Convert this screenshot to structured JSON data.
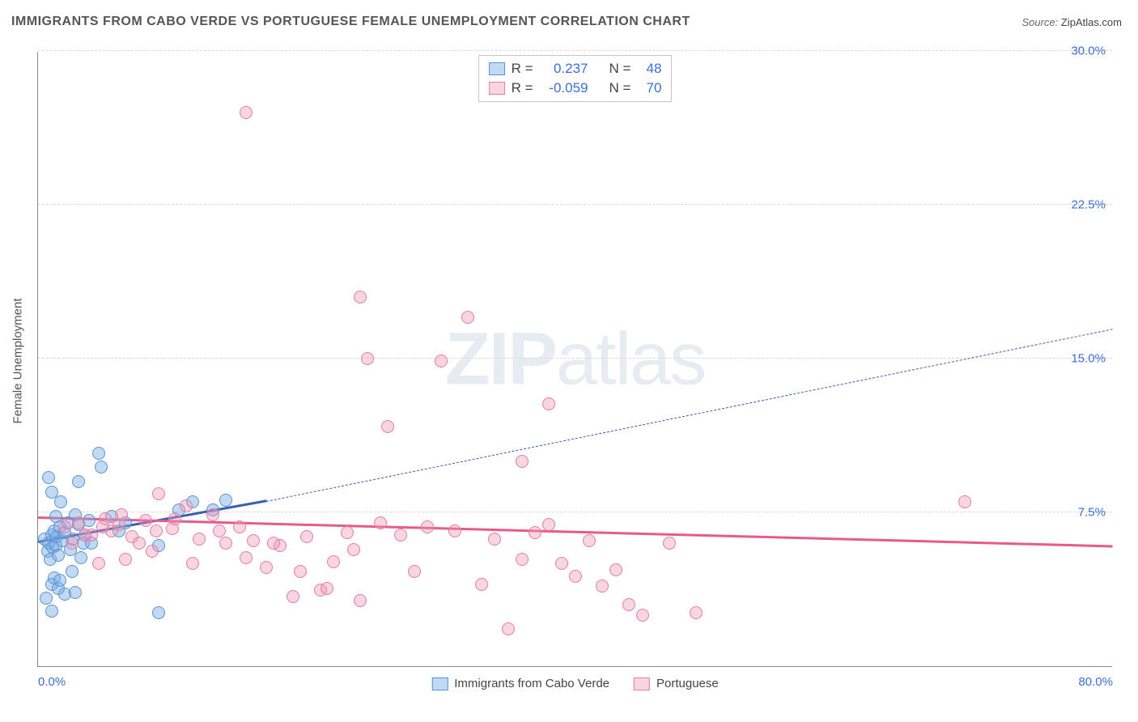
{
  "title": "IMMIGRANTS FROM CABO VERDE VS PORTUGUESE FEMALE UNEMPLOYMENT CORRELATION CHART",
  "source_prefix": "Source: ",
  "source_name": "ZipAtlas.com",
  "watermark": {
    "bold": "ZIP",
    "light": "atlas"
  },
  "y_axis_title": "Female Unemployment",
  "chart": {
    "type": "scatter",
    "xlim": [
      0,
      80
    ],
    "ylim": [
      0,
      30
    ],
    "x_ticks": [
      {
        "val": 0,
        "label": "0.0%"
      },
      {
        "val": 80,
        "label": "80.0%"
      }
    ],
    "y_ticks": [
      {
        "val": 7.5,
        "label": "7.5%"
      },
      {
        "val": 15.0,
        "label": "15.0%"
      },
      {
        "val": 22.5,
        "label": "22.5%"
      },
      {
        "val": 30.0,
        "label": "30.0%"
      }
    ],
    "y_tick_label_color": "#3b6fd6",
    "x_tick_label_color": "#3b6fd6",
    "grid_color": "#d8d8d8",
    "axis_color": "#888888",
    "background_color": "#ffffff",
    "marker_radius": 8,
    "marker_stroke_width": 1.5,
    "axis_title_fontsize": 15,
    "tick_label_fontsize": 15,
    "series": [
      {
        "id": "cabo_verde",
        "label": "Immigrants from Cabo Verde",
        "fill": "rgba(120,170,230,0.45)",
        "stroke": "#5a93d4",
        "R_label": "R =",
        "R": "0.237",
        "N_label": "N =",
        "N": "48",
        "trend": {
          "x1": 0,
          "y1": 6.0,
          "x2": 17,
          "y2": 8.0,
          "dash_x2": 80,
          "dash_y2": 16.4,
          "color": "#3b5fb0",
          "solid_width": 3,
          "dash_width": 1
        },
        "points": [
          [
            0.5,
            6.2
          ],
          [
            0.7,
            5.6
          ],
          [
            0.8,
            6.0
          ],
          [
            0.9,
            5.2
          ],
          [
            1.0,
            6.4
          ],
          [
            1.1,
            5.8
          ],
          [
            1.2,
            6.6
          ],
          [
            1.3,
            5.9
          ],
          [
            1.4,
            6.3
          ],
          [
            1.5,
            5.4
          ],
          [
            1.6,
            6.8
          ],
          [
            1.8,
            6.1
          ],
          [
            2.0,
            6.5
          ],
          [
            2.2,
            7.0
          ],
          [
            2.4,
            5.7
          ],
          [
            2.6,
            6.2
          ],
          [
            2.8,
            7.4
          ],
          [
            3.0,
            6.9
          ],
          [
            3.2,
            5.3
          ],
          [
            3.4,
            6.0
          ],
          [
            1.0,
            4.0
          ],
          [
            1.2,
            4.3
          ],
          [
            1.5,
            3.8
          ],
          [
            2.0,
            3.5
          ],
          [
            1.0,
            8.5
          ],
          [
            1.7,
            8.0
          ],
          [
            3.0,
            9.0
          ],
          [
            4.5,
            10.4
          ],
          [
            4.7,
            9.7
          ],
          [
            0.8,
            9.2
          ],
          [
            2.5,
            4.6
          ],
          [
            1.3,
            7.3
          ],
          [
            1.6,
            4.2
          ],
          [
            3.5,
            6.4
          ],
          [
            3.8,
            7.1
          ],
          [
            4.0,
            6.0
          ],
          [
            5.5,
            7.3
          ],
          [
            6.0,
            6.6
          ],
          [
            6.5,
            7.0
          ],
          [
            9.0,
            5.9
          ],
          [
            10.5,
            7.6
          ],
          [
            11.5,
            8.0
          ],
          [
            13.0,
            7.6
          ],
          [
            14.0,
            8.1
          ],
          [
            9.0,
            2.6
          ],
          [
            1.0,
            2.7
          ],
          [
            0.6,
            3.3
          ],
          [
            2.8,
            3.6
          ]
        ]
      },
      {
        "id": "portuguese",
        "label": "Portuguese",
        "fill": "rgba(240,150,180,0.4)",
        "stroke": "#e47ea0",
        "R_label": "R =",
        "R": "-0.059",
        "N_label": "N =",
        "N": "70",
        "trend": {
          "x1": 0,
          "y1": 7.2,
          "x2": 80,
          "y2": 5.8,
          "dash_x2": 80,
          "dash_y2": 5.8,
          "color": "#e85a8c",
          "solid_width": 3,
          "dash_width": 0
        },
        "points": [
          [
            2.0,
            6.8
          ],
          [
            3.0,
            7.0
          ],
          [
            4.0,
            6.4
          ],
          [
            5.0,
            7.2
          ],
          [
            5.5,
            6.6
          ],
          [
            6.0,
            6.9
          ],
          [
            7.0,
            6.3
          ],
          [
            8.0,
            7.1
          ],
          [
            9.0,
            8.4
          ],
          [
            10.0,
            6.7
          ],
          [
            11.0,
            7.8
          ],
          [
            12.0,
            6.2
          ],
          [
            13.0,
            7.4
          ],
          [
            14.0,
            6.0
          ],
          [
            15.0,
            6.8
          ],
          [
            16.0,
            6.1
          ],
          [
            17.0,
            4.8
          ],
          [
            18.0,
            5.9
          ],
          [
            19.0,
            3.4
          ],
          [
            20.0,
            6.3
          ],
          [
            21.0,
            3.7
          ],
          [
            22.0,
            5.1
          ],
          [
            23.0,
            6.5
          ],
          [
            24.0,
            3.2
          ],
          [
            15.5,
            27.0
          ],
          [
            24.0,
            18.0
          ],
          [
            24.5,
            15.0
          ],
          [
            26.0,
            11.7
          ],
          [
            27.0,
            6.4
          ],
          [
            28.0,
            4.6
          ],
          [
            29.0,
            6.8
          ],
          [
            30.0,
            14.9
          ],
          [
            31.0,
            6.6
          ],
          [
            32.0,
            17.0
          ],
          [
            33.0,
            4.0
          ],
          [
            34.0,
            6.2
          ],
          [
            35.0,
            1.8
          ],
          [
            36.0,
            10.0
          ],
          [
            37.0,
            6.5
          ],
          [
            38.0,
            12.8
          ],
          [
            39.0,
            5.0
          ],
          [
            40.0,
            4.4
          ],
          [
            41.0,
            6.1
          ],
          [
            42.0,
            3.9
          ],
          [
            43.0,
            4.7
          ],
          [
            44.0,
            3.0
          ],
          [
            45.0,
            2.5
          ],
          [
            47.0,
            6.0
          ],
          [
            49.0,
            2.6
          ],
          [
            4.5,
            5.0
          ],
          [
            6.5,
            5.2
          ],
          [
            8.5,
            5.6
          ],
          [
            11.5,
            5.0
          ],
          [
            13.5,
            6.6
          ],
          [
            15.5,
            5.3
          ],
          [
            17.5,
            6.0
          ],
          [
            19.5,
            4.6
          ],
          [
            21.5,
            3.8
          ],
          [
            23.5,
            5.7
          ],
          [
            25.5,
            7.0
          ],
          [
            2.5,
            6.0
          ],
          [
            3.5,
            6.4
          ],
          [
            4.8,
            6.8
          ],
          [
            6.2,
            7.4
          ],
          [
            7.5,
            6.0
          ],
          [
            8.8,
            6.6
          ],
          [
            10.2,
            7.2
          ],
          [
            69.0,
            8.0
          ],
          [
            36.0,
            5.2
          ],
          [
            38.0,
            6.9
          ]
        ]
      }
    ]
  }
}
